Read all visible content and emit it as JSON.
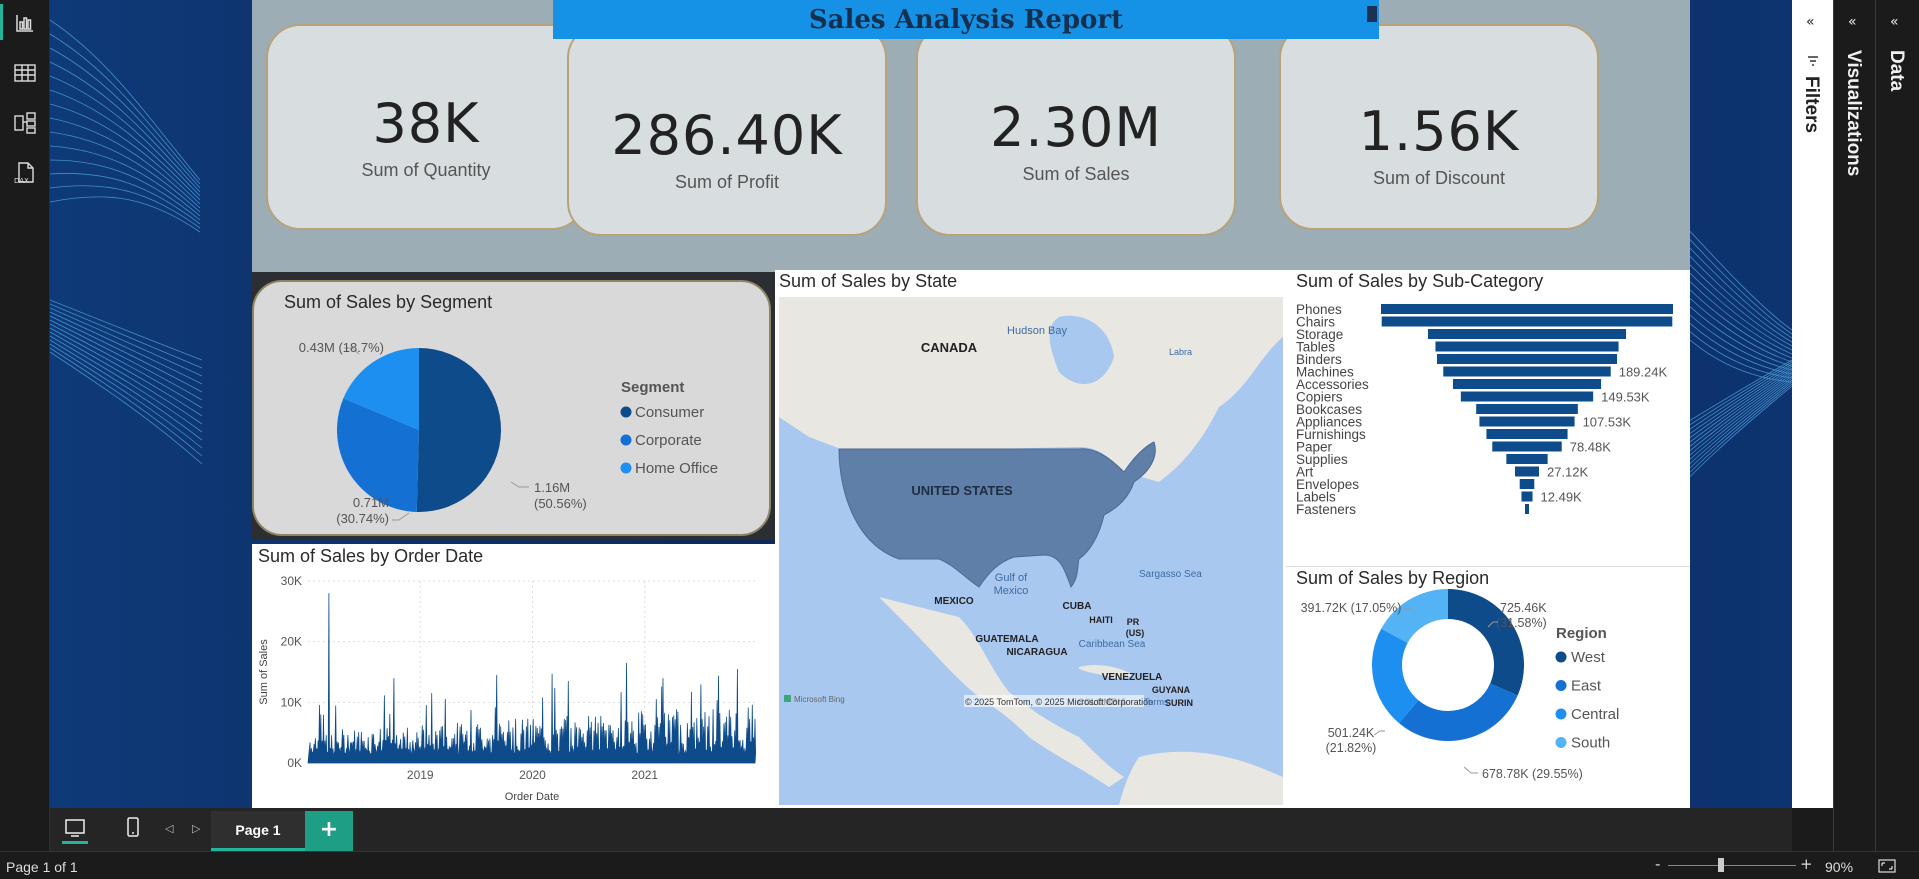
{
  "report": {
    "title": "Sales Analysis Report"
  },
  "kpis": [
    {
      "value": "38K",
      "label": "Sum of Quantity"
    },
    {
      "value": "286.40K",
      "label": "Sum of Profit"
    },
    {
      "value": "2.30M",
      "label": "Sum of Sales"
    },
    {
      "value": "1.56K",
      "label": "Sum of Discount"
    }
  ],
  "segment_chart": {
    "title": "Sum of Sales by Segment",
    "legend_title": "Segment",
    "labels": [
      "1.16M",
      "(50.56%)",
      "0.71M",
      "(30.74%)",
      "0.43M (18.7%)"
    ]
  },
  "map_chart": {
    "title": "Sum of Sales by State",
    "places": [
      "CANADA",
      "Hudson Bay",
      "Labra",
      "UNITED STATES",
      "Gulf of",
      "Mexico",
      "Sargasso Sea",
      "MEXICO",
      "CUBA",
      "HAITI",
      "PR",
      "(US)",
      "GUATEMALA",
      "NICARAGUA",
      "Caribbean Sea",
      "VENEZUELA",
      "GUYANA",
      "COLOMBIA",
      "SURIN"
    ],
    "attribution": "© 2025 TomTom, © 2025 Microsoft Corporation",
    "terms": "Terms",
    "bing": "Microsoft Bing"
  },
  "subcat_chart": {
    "title": "Sum of Sales by Sub-Category",
    "value_labels": [
      "189.24K",
      "149.53K",
      "107.53K",
      "78.48K",
      "27.12K",
      "12.49K"
    ]
  },
  "date_chart": {
    "title": "Sum of Sales by Order Date",
    "xlabel": "Order Date",
    "ylabel": "Sum of Sales",
    "yticks": [
      "30K",
      "20K",
      "10K",
      "0K"
    ],
    "xticks": [
      "2019",
      "2020",
      "2021"
    ]
  },
  "region_chart": {
    "title": "Sum of Sales by Region",
    "legend_title": "Region",
    "labels": [
      "725.46K",
      "(31.58%)",
      "678.78K (29.55%)",
      "501.24K",
      "(21.82%)",
      "391.72K (17.05%)"
    ]
  },
  "chart_data": [
    {
      "type": "pie",
      "title": "Sum of Sales by Segment",
      "categories": [
        "Consumer",
        "Corporate",
        "Home Office"
      ],
      "values": [
        1160000,
        710000,
        430000
      ],
      "percents": [
        50.56,
        30.74,
        18.7
      ],
      "colors": [
        "#0e4b8a",
        "#1570d4",
        "#1d8ff0"
      ],
      "legend": "right"
    },
    {
      "type": "bar",
      "orientation": "horizontal-funnel",
      "title": "Sum of Sales by Sub-Category",
      "categories": [
        "Phones",
        "Chairs",
        "Storage",
        "Tables",
        "Binders",
        "Machines",
        "Accessories",
        "Copiers",
        "Bookcases",
        "Appliances",
        "Furnishings",
        "Paper",
        "Supplies",
        "Art",
        "Envelopes",
        "Labels",
        "Fasteners"
      ],
      "values": [
        330007,
        328449,
        223844,
        206966,
        203413,
        189239,
        167380,
        149528,
        114880,
        107532,
        91705,
        78479,
        46674,
        27119,
        16476,
        12486,
        3024
      ],
      "color": "#0e4b8a"
    },
    {
      "type": "pie",
      "variant": "donut",
      "title": "Sum of Sales by Region",
      "categories": [
        "West",
        "East",
        "Central",
        "South"
      ],
      "values": [
        725460,
        678780,
        501240,
        391720
      ],
      "percents": [
        31.58,
        29.55,
        21.82,
        17.05
      ],
      "colors": [
        "#0e4b8a",
        "#1570d4",
        "#1d8ff0",
        "#54b3f5"
      ],
      "legend": "right"
    },
    {
      "type": "area",
      "title": "Sum of Sales by Order Date",
      "xlabel": "Order Date",
      "ylabel": "Sum of Sales",
      "ylim": [
        0,
        30000
      ],
      "x_range": [
        "2018-01",
        "2021-12"
      ],
      "series_color": "#0e4b8a",
      "peaks": [
        {
          "x": "2018-03",
          "y": 28000
        },
        {
          "x": "2018-10",
          "y": 14000
        },
        {
          "x": "2019-09",
          "y": 14500
        },
        {
          "x": "2020-03",
          "y": 14700
        },
        {
          "x": "2020-11",
          "y": 16500
        },
        {
          "x": "2021-03",
          "y": 14000
        },
        {
          "x": "2021-11",
          "y": 15500
        }
      ],
      "grid": true
    }
  ],
  "panes": {
    "filters": "Filters",
    "visualizations": "Visualizations",
    "data": "Data"
  },
  "tabs": {
    "page1": "Page 1",
    "add": "+"
  },
  "status": {
    "page": "Page 1 of 1",
    "zoom": "90%"
  }
}
